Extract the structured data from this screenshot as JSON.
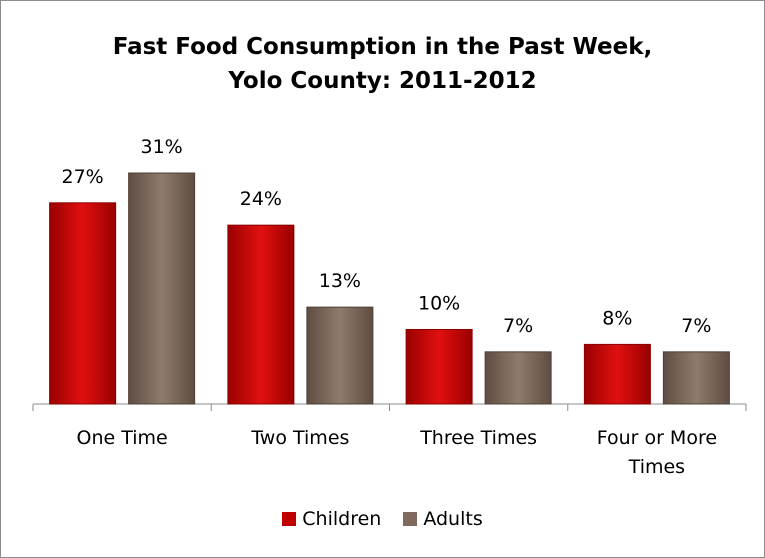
{
  "chart_data": {
    "type": "bar",
    "title_line1": "Fast Food Consumption in the Past Week,",
    "title_line2": "Yolo County: 2011-2012",
    "categories": [
      [
        "One Time"
      ],
      [
        "Two Times"
      ],
      [
        "Three Times"
      ],
      [
        "Four or More",
        "Times"
      ]
    ],
    "series": [
      {
        "name": "Children",
        "values": [
          27,
          24,
          10,
          8
        ],
        "labels": [
          "27%",
          "24%",
          "10%",
          "8%"
        ],
        "color": "#c00000"
      },
      {
        "name": "Adults",
        "values": [
          31,
          13,
          7,
          7
        ],
        "labels": [
          "31%",
          "13%",
          "7%",
          "7%"
        ],
        "color": "#7f6a5d"
      }
    ],
    "xlabel": "",
    "ylabel": "",
    "ylim": [
      0,
      35
    ],
    "grid": false,
    "legend_position": "bottom"
  }
}
